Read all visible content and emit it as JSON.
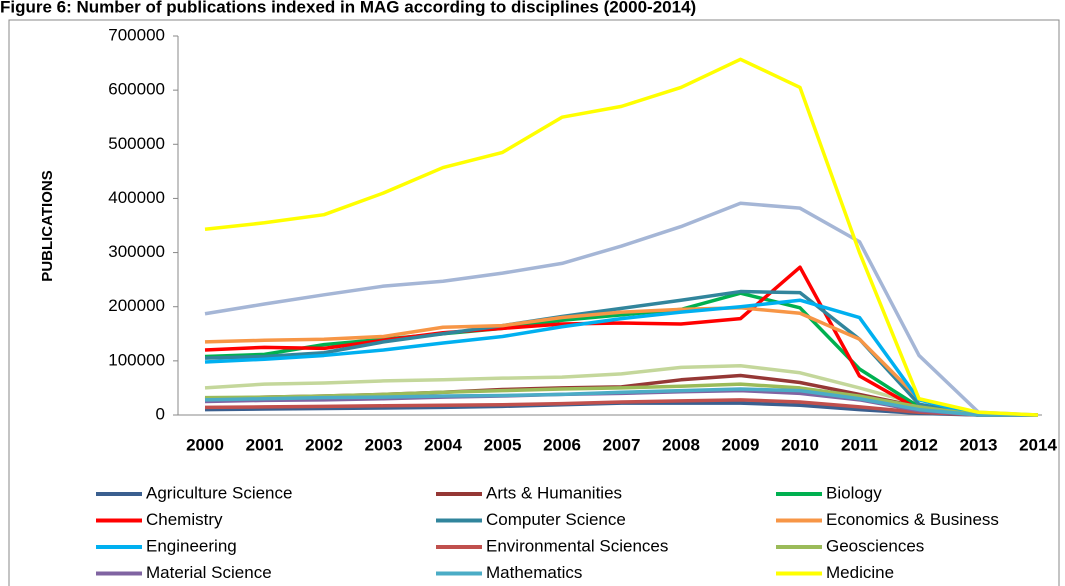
{
  "chart_data": {
    "type": "line",
    "title": "Figure 6: Number of publications indexed in MAG according to disciplines (2000-2014)",
    "y_label": "PUBLICATIONS",
    "categories": [
      "2000",
      "2001",
      "2002",
      "2003",
      "2004",
      "2005",
      "2006",
      "2007",
      "2008",
      "2009",
      "2010",
      "2011",
      "2012",
      "2013",
      "2014"
    ],
    "ylim": [
      0,
      700000
    ],
    "yticks": [
      0,
      100000,
      200000,
      300000,
      400000,
      500000,
      600000,
      700000
    ],
    "grid": false,
    "legend": "bottom",
    "series": [
      {
        "color": "#a5b6d6",
        "values": [
          187000,
          205000,
          222000,
          238000,
          247000,
          262000,
          280000,
          312000,
          348000,
          391000,
          382000,
          320000,
          110000,
          5000,
          0
        ]
      },
      {
        "color": "#c4d79b",
        "values": [
          50000,
          57000,
          59000,
          63000,
          65000,
          68000,
          70000,
          76000,
          88000,
          91000,
          78000,
          50000,
          20000,
          0,
          0
        ]
      },
      {
        "name": "Agriculture Science",
        "color": "#3a5f8f",
        "values": [
          10000,
          11000,
          12000,
          13000,
          14000,
          16000,
          19000,
          22000,
          22000,
          22000,
          18000,
          10000,
          3000,
          0,
          0
        ]
      },
      {
        "name": "Arts & Humanities",
        "color": "#953735",
        "values": [
          30000,
          33000,
          35000,
          38000,
          42000,
          47000,
          50000,
          52000,
          65000,
          73000,
          60000,
          38000,
          15000,
          0,
          0
        ]
      },
      {
        "name": "Biology",
        "color": "#00b050",
        "values": [
          108000,
          112000,
          130000,
          140000,
          150000,
          160000,
          175000,
          185000,
          195000,
          225000,
          198000,
          85000,
          15000,
          0,
          0
        ]
      },
      {
        "name": "Chemistry",
        "color": "#ff0000",
        "values": [
          120000,
          125000,
          123000,
          138000,
          152000,
          160000,
          168000,
          170000,
          168000,
          178000,
          273000,
          72000,
          10000,
          0,
          0
        ]
      },
      {
        "name": "Computer Science",
        "color": "#31859c",
        "values": [
          105000,
          108000,
          115000,
          135000,
          150000,
          165000,
          182000,
          197000,
          212000,
          228000,
          226000,
          140000,
          20000,
          0,
          0
        ]
      },
      {
        "name": "Economics & Business",
        "color": "#f79646",
        "values": [
          135000,
          138000,
          140000,
          145000,
          162000,
          165000,
          180000,
          190000,
          195000,
          198000,
          188000,
          140000,
          30000,
          0,
          0
        ]
      },
      {
        "name": "Engineering",
        "color": "#00b0f0",
        "values": [
          98000,
          103000,
          110000,
          120000,
          133000,
          145000,
          163000,
          178000,
          190000,
          200000,
          212000,
          180000,
          28000,
          0,
          0
        ]
      },
      {
        "name": "Environmental Sciences",
        "color": "#c0504d",
        "values": [
          14000,
          15000,
          16000,
          17000,
          18000,
          19000,
          21000,
          24000,
          26000,
          28000,
          24000,
          15000,
          5000,
          0,
          0
        ]
      },
      {
        "name": "Geosciences",
        "color": "#9bbb59",
        "values": [
          32000,
          33000,
          35000,
          38000,
          42000,
          45000,
          48000,
          50000,
          53000,
          57000,
          50000,
          35000,
          15000,
          0,
          0
        ]
      },
      {
        "name": "Material Science",
        "color": "#8064a2",
        "values": [
          25000,
          27000,
          28000,
          30000,
          33000,
          35000,
          38000,
          40000,
          43000,
          45000,
          40000,
          28000,
          8000,
          0,
          0
        ]
      },
      {
        "name": "Mathematics",
        "color": "#4bacc6",
        "values": [
          28000,
          30000,
          32000,
          33000,
          35000,
          36000,
          38000,
          42000,
          45000,
          48000,
          45000,
          30000,
          10000,
          0,
          0
        ]
      },
      {
        "name": "Medicine",
        "color": "#ffff00",
        "values": [
          343000,
          355000,
          370000,
          410000,
          457000,
          485000,
          550000,
          570000,
          605000,
          657000,
          605000,
          300000,
          30000,
          5000,
          0
        ]
      }
    ]
  }
}
